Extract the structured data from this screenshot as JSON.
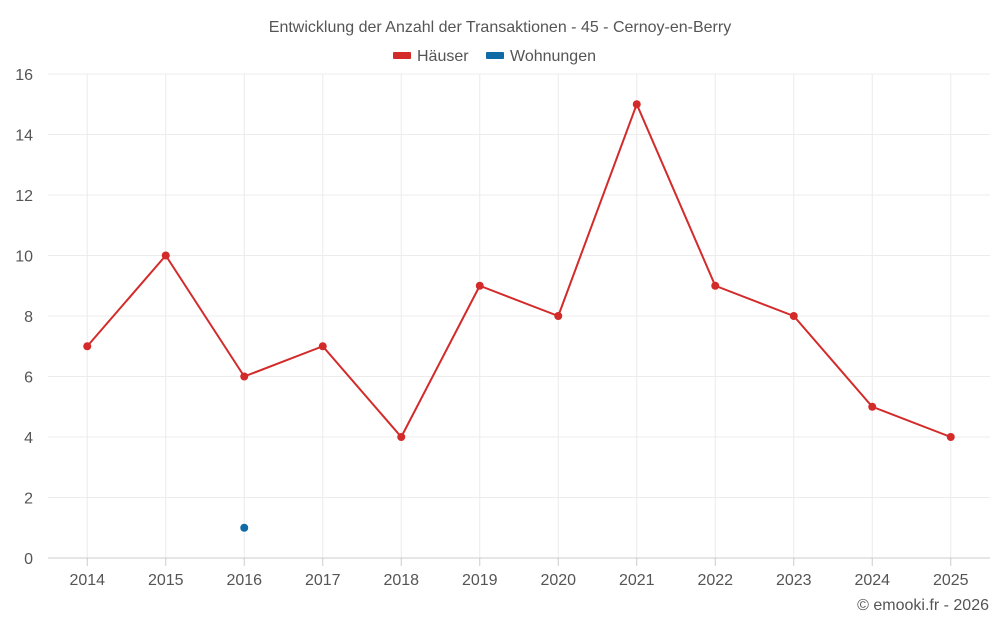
{
  "chart_data": {
    "type": "line",
    "title": "Entwicklung der Anzahl der Transaktionen - 45 - Cernoy-en-Berry",
    "categories": [
      "2014",
      "2015",
      "2016",
      "2017",
      "2018",
      "2019",
      "2020",
      "2021",
      "2022",
      "2023",
      "2024",
      "2025"
    ],
    "series": [
      {
        "name": "Häuser",
        "color": "#d32a2a",
        "values": [
          7,
          10,
          6,
          7,
          4,
          9,
          8,
          15,
          9,
          8,
          5,
          4
        ]
      },
      {
        "name": "Wohnungen",
        "color": "#0f6aa6",
        "values": [
          null,
          null,
          1,
          null,
          null,
          null,
          null,
          null,
          null,
          null,
          null,
          null
        ]
      }
    ],
    "ylim": [
      0,
      16
    ],
    "yticks": [
      0,
      2,
      4,
      6,
      8,
      10,
      12,
      14,
      16
    ],
    "grid": true,
    "legend_position": "top-center"
  },
  "credit": "© emooki.fr - 2026"
}
